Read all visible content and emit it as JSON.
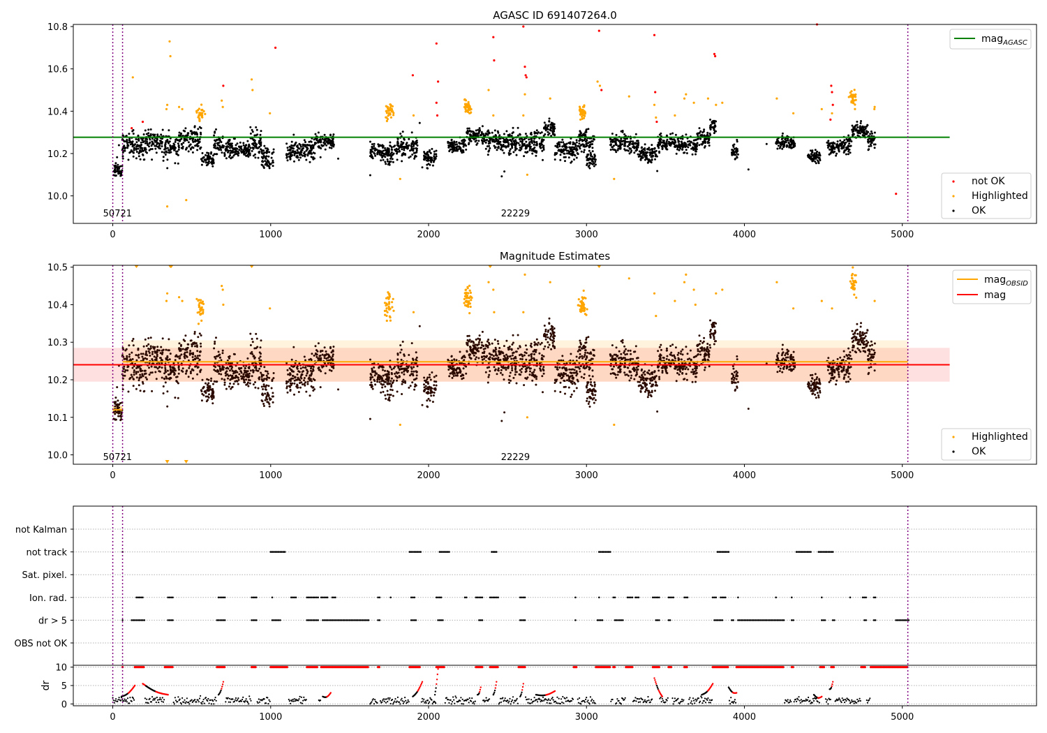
{
  "figure": {
    "colors": {
      "ok": "#000000",
      "highlighted": "#ffa500",
      "not_ok": "#ff0000",
      "agasc_line": "#008000",
      "obsid_line": "#ffa500",
      "mag_line": "#ff0000",
      "obs_boundary": "#800080"
    },
    "obs_boundaries": [
      0,
      62,
      5035
    ],
    "obs_labels": [
      {
        "text": "50721",
        "x": 30
      },
      {
        "text": "22229",
        "x": 2550
      }
    ]
  },
  "chart_data": [
    {
      "type": "scatter",
      "title": "AGASC ID 691407264.0",
      "xlim": [
        -250,
        5850
      ],
      "ylim": [
        9.87,
        10.81
      ],
      "xticks": [
        "0",
        "1000",
        "2000",
        "3000",
        "4000",
        "5000"
      ],
      "yticks": [
        "10.0",
        "10.2",
        "10.4",
        "10.6",
        "10.8"
      ],
      "ytick_values": [
        10.0,
        10.2,
        10.4,
        10.6,
        10.8
      ],
      "obs_label_y": 9.92,
      "legend_lines": [
        {
          "label": "mag",
          "sub": "AGASC",
          "color": "#008000"
        }
      ],
      "legend_points": [
        {
          "label": "not OK",
          "color": "#ff0000"
        },
        {
          "label": "Highlighted",
          "color": "#ffa500"
        },
        {
          "label": "OK",
          "color": "#000000"
        }
      ],
      "reference_lines": [
        {
          "name": "mag_AGASC",
          "value": 10.277,
          "x": [
            -250,
            5300
          ],
          "color": "#008000"
        }
      ],
      "highlighted_points": [
        [
          127,
          10.56
        ],
        [
          360,
          10.73
        ],
        [
          365,
          10.66
        ],
        [
          345,
          10.43
        ],
        [
          340,
          10.41
        ],
        [
          420,
          10.42
        ],
        [
          440,
          10.41
        ],
        [
          345,
          9.95
        ],
        [
          465,
          9.98
        ],
        [
          690,
          10.45
        ],
        [
          697,
          10.42
        ],
        [
          880,
          10.55
        ],
        [
          885,
          10.5
        ],
        [
          995,
          10.39
        ],
        [
          1820,
          10.08
        ],
        [
          1905,
          10.38
        ],
        [
          2380,
          10.5
        ],
        [
          2410,
          10.38
        ],
        [
          2600,
          10.38
        ],
        [
          2610,
          10.48
        ],
        [
          2625,
          10.1
        ],
        [
          2770,
          10.46
        ],
        [
          3070,
          10.54
        ],
        [
          3085,
          10.52
        ],
        [
          3175,
          10.08
        ],
        [
          3270,
          10.47
        ],
        [
          3430,
          10.43
        ],
        [
          3440,
          10.37
        ],
        [
          3620,
          10.46
        ],
        [
          3630,
          10.48
        ],
        [
          3680,
          10.44
        ],
        [
          3860,
          10.44
        ],
        [
          3820,
          10.43
        ],
        [
          4205,
          10.46
        ],
        [
          4310,
          10.39
        ],
        [
          4490,
          10.41
        ],
        [
          4555,
          10.39
        ],
        [
          4825,
          10.42
        ],
        [
          4823,
          10.41
        ],
        [
          3560,
          10.38
        ],
        [
          3770,
          10.46
        ]
      ],
      "highlighted_clusters": [
        {
          "x": 555,
          "y": 10.39,
          "n": 28
        },
        {
          "x": 1750,
          "y": 10.4,
          "n": 36
        },
        {
          "x": 2250,
          "y": 10.42,
          "n": 42
        },
        {
          "x": 2975,
          "y": 10.4,
          "n": 38
        },
        {
          "x": 4690,
          "y": 10.46,
          "n": 32
        }
      ],
      "not_ok_points": [
        [
          120,
          10.32
        ],
        [
          190,
          10.35
        ],
        [
          700,
          10.52
        ],
        [
          1030,
          10.7
        ],
        [
          1900,
          10.57
        ],
        [
          2050,
          10.72
        ],
        [
          2060,
          10.54
        ],
        [
          2050,
          10.44
        ],
        [
          2055,
          10.38
        ],
        [
          2410,
          10.75
        ],
        [
          2415,
          10.64
        ],
        [
          2600,
          10.8
        ],
        [
          2610,
          10.61
        ],
        [
          2615,
          10.57
        ],
        [
          2620,
          10.56
        ],
        [
          3080,
          10.78
        ],
        [
          3095,
          10.5
        ],
        [
          3430,
          10.76
        ],
        [
          3435,
          10.49
        ],
        [
          3445,
          10.35
        ],
        [
          3810,
          10.67
        ],
        [
          3815,
          10.66
        ],
        [
          4460,
          10.81
        ],
        [
          4550,
          10.52
        ],
        [
          4555,
          10.49
        ],
        [
          4560,
          10.43
        ],
        [
          4545,
          10.36
        ],
        [
          4960,
          10.01
        ]
      ]
    },
    {
      "type": "scatter",
      "title": "Magnitude Estimates",
      "xlim": [
        -250,
        5850
      ],
      "ylim": [
        9.975,
        10.505
      ],
      "xticks": [
        "0",
        "1000",
        "2000",
        "3000",
        "4000",
        "5000"
      ],
      "yticks": [
        "10.0",
        "10.1",
        "10.2",
        "10.3",
        "10.4",
        "10.5"
      ],
      "ytick_values": [
        10.0,
        10.1,
        10.2,
        10.3,
        10.4,
        10.5
      ],
      "obs_label_y": 9.995,
      "legend_lines": [
        {
          "label": "mag",
          "sub": "OBSID",
          "color": "#ffa500"
        },
        {
          "label": "mag",
          "sub": "",
          "color": "#ff0000"
        }
      ],
      "legend_points": [
        {
          "label": "Highlighted",
          "color": "#ffa500"
        },
        {
          "label": "OK",
          "color": "#000000"
        }
      ],
      "bands": [
        {
          "name": "mag",
          "low": 10.195,
          "high": 10.285,
          "x": [
            -250,
            5300
          ],
          "color": "#ff0000",
          "opacity": 0.12
        },
        {
          "name": "mag_OBSID obs 22229",
          "low": 10.195,
          "high": 10.305,
          "x": [
            62,
            5035
          ],
          "color": "#ffa500",
          "opacity": 0.13
        },
        {
          "name": "mag_OBSID obs 50721",
          "low": 10.11,
          "high": 10.13,
          "x": [
            0,
            62
          ],
          "color": "#ffa500",
          "opacity": 0.4
        }
      ],
      "reference_lines": [
        {
          "name": "mag_OBSID obs 50721",
          "value": 10.12,
          "x": [
            0,
            62
          ],
          "color": "#ffa500"
        },
        {
          "name": "mag_OBSID obs 22229",
          "value": 10.248,
          "x": [
            62,
            5035
          ],
          "color": "#ffa500"
        },
        {
          "name": "mag",
          "value": 10.24,
          "x": [
            -250,
            5300
          ],
          "color": "#ff0000"
        }
      ],
      "clip_markers": [
        [
          150,
          10.5
        ],
        [
          365,
          10.5
        ],
        [
          370,
          10.5
        ],
        [
          880,
          10.5
        ],
        [
          2390,
          10.5
        ],
        [
          3080,
          10.5
        ],
        [
          345,
          9.98
        ],
        [
          465,
          9.98
        ]
      ],
      "highlighted_points": [
        [
          345,
          10.43
        ],
        [
          340,
          10.41
        ],
        [
          420,
          10.42
        ],
        [
          440,
          10.41
        ],
        [
          690,
          10.45
        ],
        [
          697,
          10.44
        ],
        [
          700,
          10.4
        ],
        [
          995,
          10.39
        ],
        [
          1820,
          10.08
        ],
        [
          1905,
          10.38
        ],
        [
          2380,
          10.46
        ],
        [
          2410,
          10.44
        ],
        [
          2415,
          10.38
        ],
        [
          2600,
          10.38
        ],
        [
          2610,
          10.48
        ],
        [
          2625,
          10.1
        ],
        [
          2770,
          10.46
        ],
        [
          3175,
          10.08
        ],
        [
          3270,
          10.47
        ],
        [
          3430,
          10.43
        ],
        [
          3440,
          10.37
        ],
        [
          3620,
          10.46
        ],
        [
          3630,
          10.48
        ],
        [
          3680,
          10.44
        ],
        [
          3690,
          10.4
        ],
        [
          3860,
          10.44
        ],
        [
          3820,
          10.43
        ],
        [
          4205,
          10.46
        ],
        [
          4310,
          10.39
        ],
        [
          4490,
          10.41
        ],
        [
          4555,
          10.39
        ],
        [
          4825,
          10.41
        ],
        [
          3560,
          10.41
        ]
      ],
      "highlighted_clusters": [
        {
          "x": 555,
          "y": 10.39,
          "n": 28
        },
        {
          "x": 1750,
          "y": 10.4,
          "n": 36
        },
        {
          "x": 2250,
          "y": 10.42,
          "n": 42
        },
        {
          "x": 2975,
          "y": 10.4,
          "n": 38
        },
        {
          "x": 4690,
          "y": 10.45,
          "n": 32
        }
      ]
    },
    {
      "type": "scatter",
      "title": "",
      "xlim": [
        -250,
        5850
      ],
      "flag_rows": [
        "not Kalman",
        "not track",
        "Sat. pixel.",
        "Ion. rad.",
        "dr > 5",
        "OBS not OK"
      ],
      "flags": {
        "not track": [
          [
            62,
            62
          ],
          [
            1000,
            1090
          ],
          [
            1880,
            1950
          ],
          [
            2070,
            2130
          ],
          [
            2400,
            2430
          ],
          [
            3080,
            3150
          ],
          [
            3830,
            3900
          ],
          [
            4330,
            4420
          ],
          [
            4470,
            4560
          ]
        ],
        "Ion. rad.": [
          [
            150,
            190
          ],
          [
            350,
            380
          ],
          [
            670,
            710
          ],
          [
            880,
            910
          ],
          [
            1010,
            1010
          ],
          [
            1130,
            1160
          ],
          [
            1230,
            1260
          ],
          [
            1270,
            1300
          ],
          [
            1320,
            1360
          ],
          [
            1390,
            1410
          ],
          [
            1680,
            1690
          ],
          [
            1760,
            1760
          ],
          [
            1890,
            1910
          ],
          [
            2050,
            2080
          ],
          [
            2230,
            2240
          ],
          [
            2300,
            2340
          ],
          [
            2390,
            2440
          ],
          [
            2580,
            2610
          ],
          [
            2930,
            2930
          ],
          [
            3080,
            3080
          ],
          [
            3170,
            3180
          ],
          [
            3260,
            3290
          ],
          [
            3310,
            3330
          ],
          [
            3420,
            3460
          ],
          [
            3520,
            3550
          ],
          [
            3620,
            3640
          ],
          [
            3800,
            3820
          ],
          [
            3850,
            3880
          ],
          [
            3960,
            3960
          ],
          [
            4200,
            4200
          ],
          [
            4300,
            4300
          ],
          [
            4490,
            4490
          ],
          [
            4670,
            4670
          ],
          [
            4750,
            4770
          ],
          [
            4820,
            4830
          ]
        ],
        "dr > 5": [
          [
            62,
            62
          ],
          [
            120,
            200
          ],
          [
            350,
            380
          ],
          [
            660,
            710
          ],
          [
            880,
            910
          ],
          [
            1010,
            1060
          ],
          [
            1230,
            1300
          ],
          [
            1330,
            1620
          ],
          [
            1680,
            1690
          ],
          [
            1890,
            1920
          ],
          [
            2060,
            2090
          ],
          [
            2320,
            2340
          ],
          [
            2580,
            2610
          ],
          [
            2930,
            2930
          ],
          [
            3070,
            3100
          ],
          [
            3180,
            3230
          ],
          [
            3440,
            3460
          ],
          [
            3520,
            3530
          ],
          [
            3810,
            3860
          ],
          [
            3920,
            3930
          ],
          [
            3960,
            4250
          ],
          [
            4300,
            4310
          ],
          [
            4490,
            4510
          ],
          [
            4560,
            4570
          ],
          [
            4760,
            4770
          ],
          [
            4820,
            4830
          ],
          [
            4960,
            5040
          ]
        ]
      },
      "dr_panel": {
        "ylabel": "dr",
        "yticks": [
          "0",
          "5",
          "10"
        ],
        "ytick_values": [
          0,
          5,
          10
        ],
        "ylim": [
          -0.5,
          10.5
        ],
        "saturated_ranges": [
          [
            62,
            62
          ],
          [
            140,
            200
          ],
          [
            330,
            380
          ],
          [
            660,
            710
          ],
          [
            880,
            910
          ],
          [
            1000,
            1110
          ],
          [
            1230,
            1300
          ],
          [
            1320,
            1620
          ],
          [
            1680,
            1690
          ],
          [
            1880,
            1950
          ],
          [
            2050,
            2100
          ],
          [
            2300,
            2340
          ],
          [
            2390,
            2440
          ],
          [
            2570,
            2610
          ],
          [
            2920,
            2940
          ],
          [
            3060,
            3150
          ],
          [
            3170,
            3180
          ],
          [
            3250,
            3290
          ],
          [
            3420,
            3460
          ],
          [
            3520,
            3540
          ],
          [
            3620,
            3640
          ],
          [
            3800,
            3900
          ],
          [
            3950,
            4250
          ],
          [
            4300,
            4310
          ],
          [
            4480,
            4510
          ],
          [
            4550,
            4570
          ],
          [
            4740,
            4770
          ],
          [
            4800,
            5035
          ]
        ],
        "arcs": [
          [
            55,
            140,
            2.0,
            5.0
          ],
          [
            190,
            350,
            5.5,
            2.5
          ],
          [
            670,
            700,
            2.5,
            6.0
          ],
          [
            1330,
            1380,
            2.0,
            3.0
          ],
          [
            1900,
            1960,
            2.0,
            6.0
          ],
          [
            2040,
            2060,
            2.5,
            9.5
          ],
          [
            2310,
            2330,
            2.5,
            4.5
          ],
          [
            2410,
            2430,
            2.5,
            6.0
          ],
          [
            2580,
            2600,
            2.0,
            5.5
          ],
          [
            2680,
            2800,
            2.5,
            3.5
          ],
          [
            3430,
            3480,
            7.0,
            2.0
          ],
          [
            3730,
            3800,
            2.5,
            5.5
          ],
          [
            3900,
            3950,
            4.5,
            3.0
          ],
          [
            4440,
            4490,
            2.5,
            2.0
          ],
          [
            4540,
            4560,
            4.0,
            6.0
          ]
        ]
      }
    }
  ]
}
